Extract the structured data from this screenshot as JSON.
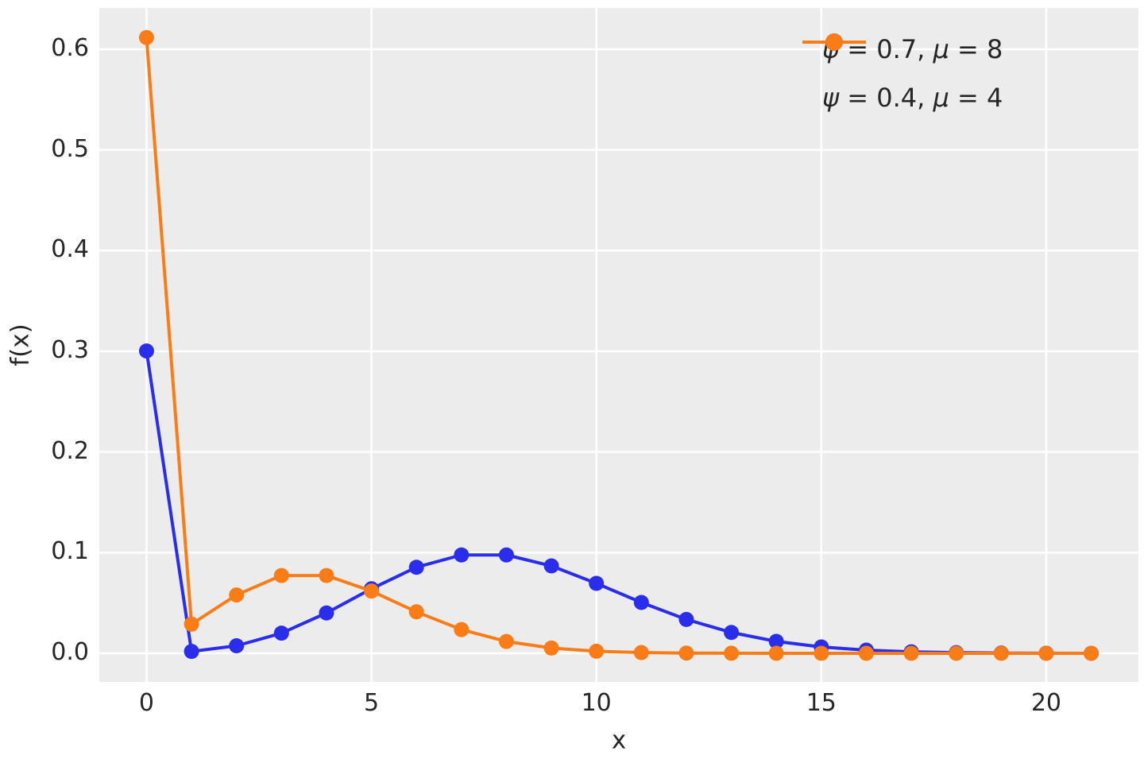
{
  "figure": {
    "background_color": "#ffffff",
    "axes_background_color": "#ececec",
    "grid_color": "#ffffff",
    "text_color": "#262626"
  },
  "chart_data": {
    "type": "line",
    "title": "",
    "xlabel": "x",
    "ylabel": "f(x)",
    "xlim": [
      -1.05,
      22.05
    ],
    "ylim": [
      -0.0284,
      0.641
    ],
    "xticks": [
      0,
      5,
      10,
      15,
      20
    ],
    "xtick_labels": [
      "0",
      "5",
      "10",
      "15",
      "20"
    ],
    "yticks": [
      0.0,
      0.1,
      0.2,
      0.3,
      0.4,
      0.5,
      0.6
    ],
    "ytick_labels": [
      "0.0",
      "0.1",
      "0.2",
      "0.3",
      "0.4",
      "0.5",
      "0.6"
    ],
    "grid": true,
    "legend_position": "upper right",
    "marker": "o",
    "x": [
      0,
      1,
      2,
      3,
      4,
      5,
      6,
      7,
      8,
      9,
      10,
      11,
      12,
      13,
      14,
      15,
      16,
      17,
      18,
      19,
      20,
      21
    ],
    "series": [
      {
        "label": "ψ = 0.7, μ = 8",
        "psi": 0.7,
        "mu": 8,
        "color": "#2a2eec",
        "values": [
          0.300305,
          0.001878,
          0.007513,
          0.020036,
          0.040073,
          0.064116,
          0.085488,
          0.097701,
          0.097701,
          0.086845,
          0.069476,
          0.050528,
          0.033685,
          0.020729,
          0.011845,
          0.006318,
          0.003159,
          0.001486,
          0.000661,
          0.000278,
          0.000111,
          4.2e-05
        ]
      },
      {
        "label": "ψ = 0.4, μ = 4",
        "psi": 0.4,
        "mu": 4,
        "color": "#fa7c17",
        "values": [
          0.611588,
          0.028987,
          0.057973,
          0.077298,
          0.077298,
          0.061838,
          0.041225,
          0.023557,
          0.011779,
          0.005235,
          0.002094,
          0.000761,
          0.000254,
          7.8e-05,
          2.2e-05,
          6e-06,
          1e-06,
          0,
          0,
          0,
          0,
          0
        ]
      }
    ]
  }
}
